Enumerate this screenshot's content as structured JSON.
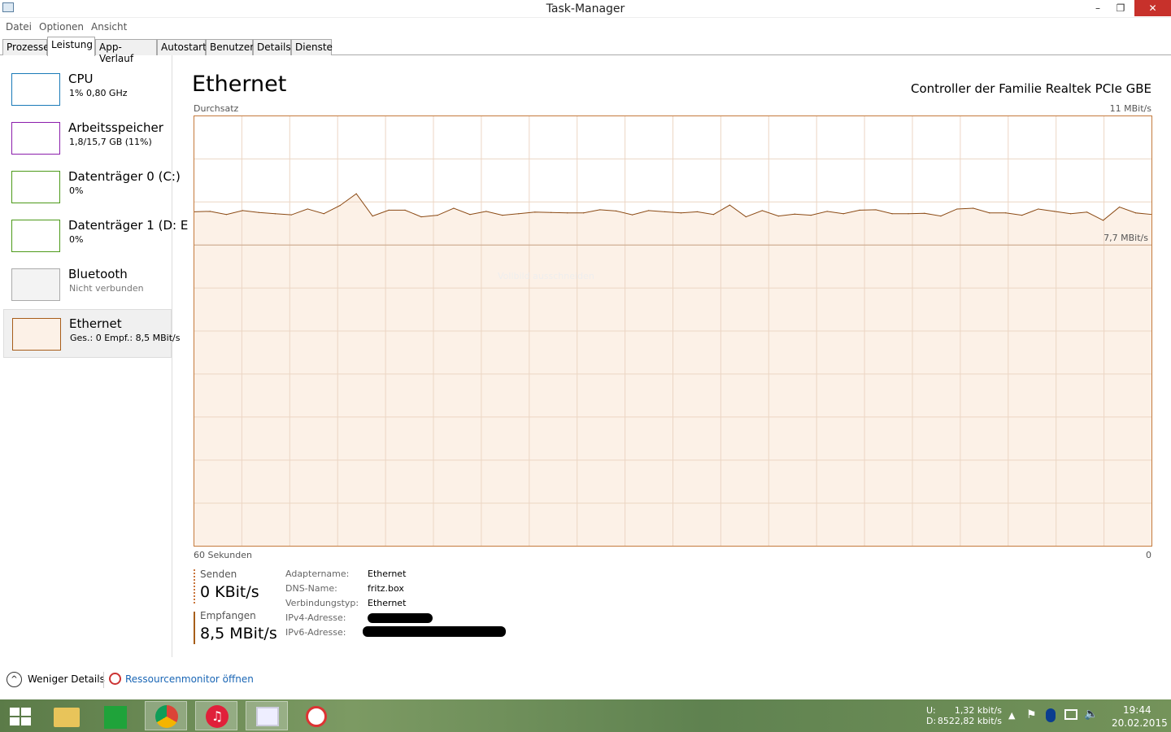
{
  "window": {
    "title": "Task-Manager",
    "minimize": "–",
    "maximize": "❐",
    "close": "✕"
  },
  "menu": [
    "Datei",
    "Optionen",
    "Ansicht"
  ],
  "tabs": [
    "Prozesse",
    "Leistung",
    "App-Verlauf",
    "Autostart",
    "Benutzer",
    "Details",
    "Dienste"
  ],
  "active_tab": "Leistung",
  "sidebar": [
    {
      "name": "CPU",
      "sub": "1% 0,80 GHz",
      "color": "#1a7ab8"
    },
    {
      "name": "Arbeitsspeicher",
      "sub": "1,8/15,7 GB (11%)",
      "color": "#8b1eab"
    },
    {
      "name": "Datenträger 0 (C:)",
      "sub": "0%",
      "color": "#4d9a1a"
    },
    {
      "name": "Datenträger 1 (D: E",
      "sub": "0%",
      "color": "#4d9a1a"
    },
    {
      "name": "Bluetooth",
      "sub": "Nicht verbunden",
      "color": "#aaaaaa"
    },
    {
      "name": "Ethernet",
      "sub": "Ges.: 0 Empf.: 8,5 MBit/s",
      "color": "#a75e1a"
    }
  ],
  "main": {
    "title": "Ethernet",
    "adapter": "Controller der Familie Realtek PCIe GBE",
    "ghost_text": "Vollbild ausschneiden"
  },
  "chart_data": {
    "type": "area",
    "title": "Durchsatz",
    "ymax_label": "11 MBit/s",
    "ref_label": "7,7 MBit/s",
    "x_left_label": "60 Sekunden",
    "x_right_label": "0",
    "ylim": [
      0,
      11
    ],
    "xlim": [
      60,
      0
    ],
    "reference_line": 7.7,
    "grid": true,
    "color": "#8b4a14",
    "fill": "#fcf1e7",
    "series": [
      {
        "values": [
          8.55,
          8.56,
          8.48,
          8.58,
          8.53,
          8.5,
          8.47,
          8.62,
          8.5,
          8.71,
          9.01,
          8.44,
          8.59,
          8.59,
          8.42,
          8.46,
          8.64,
          8.48,
          8.56,
          8.46,
          8.5,
          8.54,
          8.53,
          8.52,
          8.52,
          8.6,
          8.57,
          8.47,
          8.58,
          8.55,
          8.52,
          8.55,
          8.48,
          8.72,
          8.42,
          8.58,
          8.44,
          8.49,
          8.46,
          8.56,
          8.5,
          8.59,
          8.6,
          8.5,
          8.5,
          8.51,
          8.44,
          8.62,
          8.64,
          8.52,
          8.52,
          8.46,
          8.62,
          8.56,
          8.5,
          8.54,
          8.33,
          8.67,
          8.52,
          8.48
        ]
      }
    ]
  },
  "stats": {
    "send_label": "Senden",
    "send_value": "0 KBit/s",
    "recv_label": "Empfangen",
    "recv_value": "8,5 MBit/s"
  },
  "props": [
    {
      "k": "Adaptername:",
      "v": "Ethernet"
    },
    {
      "k": "DNS-Name:",
      "v": "fritz.box"
    },
    {
      "k": "Verbindungstyp:",
      "v": "Ethernet"
    },
    {
      "k": "IPv4-Adresse:",
      "v": ""
    },
    {
      "k": "IPv6-Adresse:",
      "v": ""
    }
  ],
  "footer": {
    "less": "Weniger Details",
    "resmon": "Ressourcenmonitor öffnen"
  },
  "taskbar": {
    "apps": [
      "start",
      "explorer",
      "store",
      "chrome",
      "itunes",
      "task-manager",
      "snipping-tool"
    ],
    "net_u_label": "U:",
    "net_u": "1,32 kbit/s",
    "net_d_label": "D:",
    "net_d": "8522,82 kbit/s",
    "time": "19:44",
    "date": "20.02.2015"
  }
}
